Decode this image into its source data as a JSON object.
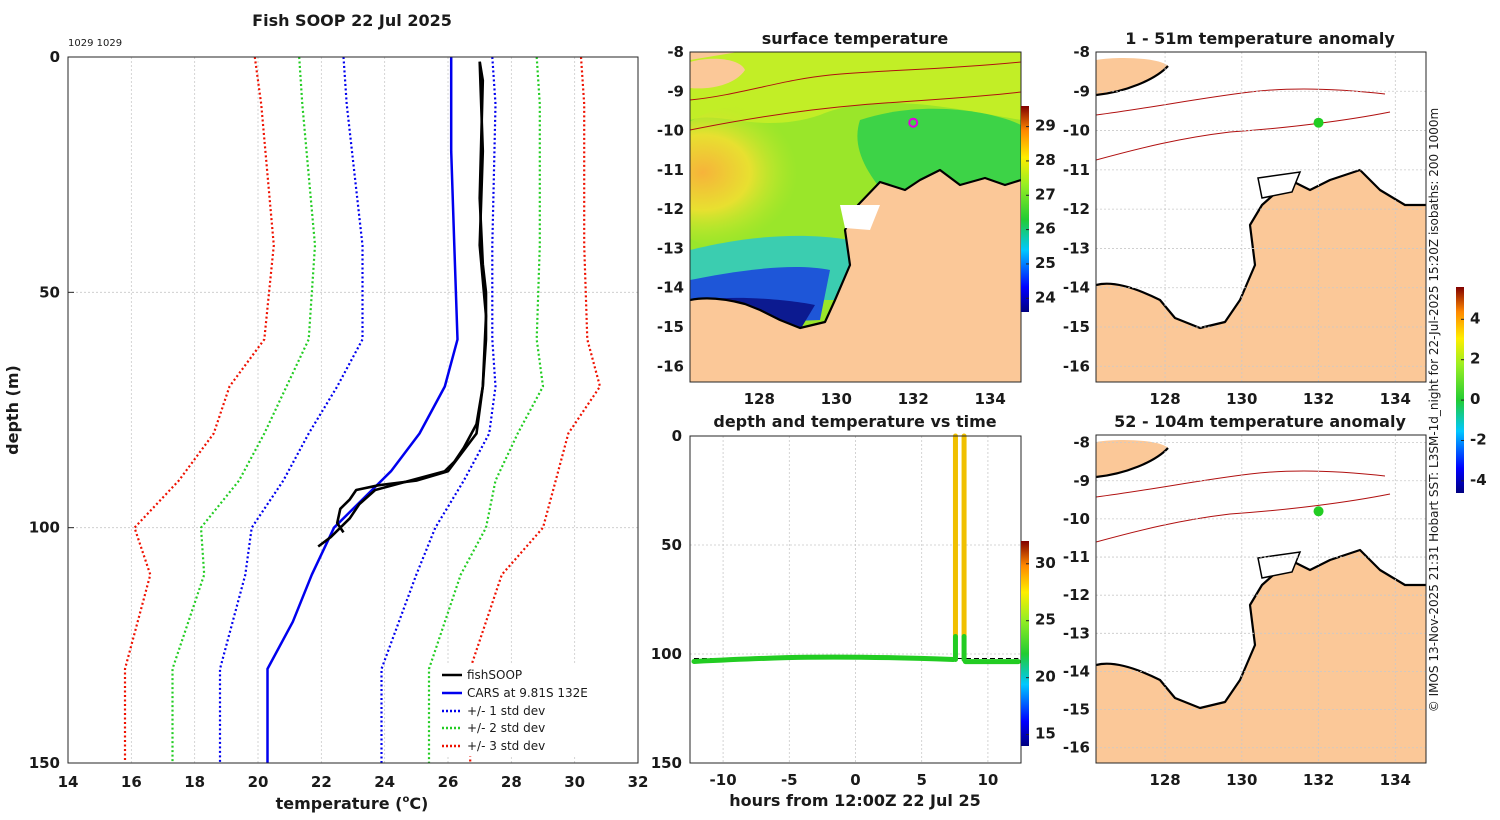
{
  "figure": {
    "vertical_note": "© IMOS 13-Nov-2025 21:31 Hobart SST: L3SM-1d_night for 22-Jul-2025 15:20Z isobaths: 200  1000m"
  },
  "colors": {
    "fish": "#000000",
    "cars": "#0000ee",
    "std1": "#0000ee",
    "std2": "#22cc22",
    "std3": "#ee1100",
    "land": "#fbc898",
    "isobath": "#b01010"
  },
  "chart_data": [
    {
      "id": "profile",
      "type": "line",
      "title": "Fish SOOP 22 Jul 2025",
      "annotation": "1029 1029",
      "xlabel": "temperature (",
      "xlabel_sup": "o",
      "xlabel_end": "C)",
      "ylabel": "depth (m)",
      "xlim": [
        14,
        32
      ],
      "ylim": [
        150,
        0
      ],
      "xticks": [
        "14",
        "16",
        "18",
        "20",
        "22",
        "24",
        "26",
        "28",
        "30",
        "32"
      ],
      "yticks": [
        "0",
        "50",
        "100",
        "150"
      ],
      "legend_position": "bottom-right",
      "legend": [
        "fishSOOP",
        "CARS at 9.81S 132E",
        "+/- 1 std dev",
        "+/- 2 std dev",
        "+/- 3 std dev"
      ],
      "cars_depth": [
        0,
        20,
        40,
        60,
        70,
        80,
        88,
        100,
        110,
        120,
        130,
        150
      ],
      "cars_temp": [
        26.1,
        26.1,
        26.2,
        26.3,
        25.9,
        25.1,
        24.2,
        22.4,
        21.7,
        21.1,
        20.3,
        20.3
      ],
      "std_depth": [
        0,
        10,
        40,
        60,
        70,
        80,
        90,
        100,
        110,
        130,
        150
      ],
      "std_minus3": [
        19.9,
        20.1,
        20.5,
        20.2,
        19.1,
        18.6,
        17.5,
        16.1,
        16.6,
        15.8,
        15.8
      ],
      "std_plus3": [
        30.2,
        30.3,
        30.3,
        30.4,
        30.8,
        29.8,
        29.4,
        29.0,
        27.7,
        26.7,
        26.7
      ],
      "std_minus2": [
        21.3,
        21.4,
        21.8,
        21.6,
        20.9,
        20.2,
        19.4,
        18.2,
        18.3,
        17.3,
        17.3
      ],
      "std_plus2": [
        28.8,
        28.9,
        28.9,
        28.8,
        29.0,
        28.2,
        27.5,
        27.2,
        26.4,
        25.4,
        25.4
      ],
      "std_minus1": [
        22.7,
        22.8,
        23.3,
        23.3,
        22.5,
        21.6,
        20.8,
        19.8,
        19.6,
        18.8,
        18.8
      ],
      "std_plus1": [
        27.4,
        27.5,
        27.4,
        27.4,
        27.5,
        27.3,
        26.5,
        25.6,
        25.0,
        23.9,
        23.9
      ],
      "fish_down_temp": [
        27.0,
        27.1,
        27.0,
        27.1,
        27.2,
        27.2,
        27.1,
        26.9,
        26.5,
        26.2,
        25.9,
        24.8,
        23.7,
        23.2,
        22.9,
        22.6,
        22.3,
        21.9
      ],
      "fish_down_depth": [
        1,
        5,
        30,
        44,
        50,
        60,
        70,
        78,
        83,
        86,
        88,
        90,
        92,
        95,
        98,
        100,
        102,
        104
      ],
      "fish_up_temp": [
        22.7,
        22.5,
        22.6,
        22.9,
        23.1,
        23.8,
        25.0,
        26.0,
        26.9,
        27.1,
        27.2,
        27.0,
        27.1,
        27.0
      ],
      "fish_up_depth": [
        101,
        99,
        96,
        94,
        92,
        91,
        90,
        88,
        80,
        70,
        55,
        40,
        20,
        1
      ]
    },
    {
      "id": "time-series",
      "type": "scatter",
      "title": "depth and temperature vs time",
      "xlabel": "hours from 12:00Z 22 Jul 25",
      "xlim": [
        -12.5,
        12.5
      ],
      "ylim": [
        150,
        0
      ],
      "xticks": [
        "-10",
        "-5",
        "0",
        "5",
        "10"
      ],
      "yticks": [
        "0",
        "50",
        "100",
        "150"
      ],
      "colorbar_ticks": [
        "15",
        "20",
        "25",
        "30"
      ],
      "colorbar_range": [
        14,
        32
      ],
      "series": [
        {
          "name": "bottom track",
          "hours_start": -12.2,
          "hours_end": 7.4,
          "depth": 102.5,
          "temp": 22.4
        },
        {
          "name": "cast 1 down",
          "hours": 7.55,
          "depth_top": 0,
          "depth_bottom": 92,
          "temp": 27.0
        },
        {
          "name": "cast 2 up",
          "hours": 8.2,
          "depth_top": 0,
          "depth_bottom": 92,
          "temp": 27.0
        },
        {
          "name": "bottom track 2",
          "hours_start": 8.3,
          "hours_end": 12.3,
          "depth": 103.5,
          "temp": 22.4
        }
      ]
    }
  ],
  "maps": {
    "sst": {
      "title": "surface temperature",
      "xticks": [
        "128",
        "130",
        "132",
        "134"
      ],
      "yticks": [
        "-8",
        "-9",
        "-10",
        "-11",
        "-12",
        "-13",
        "-14",
        "-15",
        "-16"
      ],
      "colorbar_ticks": [
        "24",
        "25",
        "26",
        "27",
        "28",
        "29"
      ],
      "marker_lon": 132.0,
      "marker_lat": -9.8
    },
    "anom1": {
      "title": "1 - 51m temperature anomaly",
      "xticks": [
        "128",
        "130",
        "132",
        "134"
      ],
      "yticks": [
        "-8",
        "-9",
        "-10",
        "-11",
        "-12",
        "-13",
        "-14",
        "-15",
        "-16"
      ],
      "marker_lon": 132.0,
      "marker_lat": -9.8
    },
    "anom2": {
      "title": "52 - 104m temperature anomaly",
      "xticks": [
        "128",
        "130",
        "132",
        "134"
      ],
      "yticks": [
        "-8",
        "-9",
        "-10",
        "-11",
        "-12",
        "-13",
        "-14",
        "-15",
        "-16"
      ],
      "marker_lon": 132.0,
      "marker_lat": -9.8
    },
    "anomaly_colorbar_ticks": [
      "4",
      "2",
      "0",
      "-2",
      "-4"
    ]
  }
}
